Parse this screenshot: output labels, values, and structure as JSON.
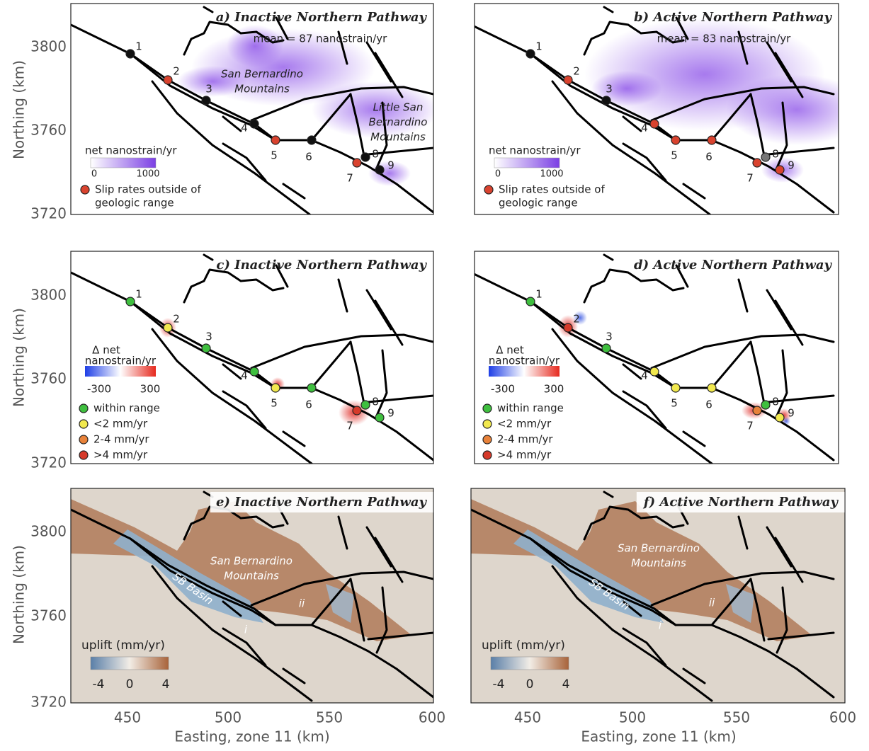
{
  "rows": [
    {
      "y_label": "Northing (km)",
      "yticks": [
        3800,
        3760,
        3720
      ]
    },
    {
      "y_label": "Northing (km)",
      "yticks": [
        3800,
        3760,
        3720
      ]
    },
    {
      "y_label": "Northing (km)",
      "yticks": [
        3800,
        3760,
        3720
      ]
    }
  ],
  "columns": [
    {
      "x_label": "Easting, zone 11 (km)",
      "xticks": [
        450,
        500,
        550,
        600
      ]
    },
    {
      "x_label": "Easting, zone 11 (km)",
      "xticks": [
        450,
        500,
        550,
        600
      ]
    }
  ],
  "panels": [
    {
      "title": "a) Inactive Northern Pathway",
      "note": "mean = 87 nanostrain/yr",
      "regions": [
        {
          "lines": [
            "San Bernardino",
            "Mountains"
          ]
        },
        {
          "lines": [
            "Little San",
            "Bernardino",
            "Mountains"
          ]
        }
      ],
      "colorbar": {
        "lines": [
          "net nanostrain/yr"
        ],
        "ticks": [
          0,
          1000
        ]
      },
      "legend": [
        {
          "lines": [
            "Slip rates outside of",
            "geologic range"
          ],
          "color": "#d9432f"
        }
      ],
      "sites": [
        {
          "label": "1",
          "color": "#111111"
        },
        {
          "label": "2",
          "color": "#d9432f"
        },
        {
          "label": "3",
          "color": "#111111"
        },
        {
          "label": "4",
          "color": "#111111"
        },
        {
          "label": "5",
          "color": "#d9432f"
        },
        {
          "label": "6",
          "color": "#111111"
        },
        {
          "label": "7",
          "color": "#d9432f"
        },
        {
          "label": "8",
          "color": "#111111"
        },
        {
          "label": "9",
          "color": "#111111"
        }
      ]
    },
    {
      "title": "b) Active Northern Pathway",
      "note": "mean = 83 nanostrain/yr",
      "colorbar": {
        "lines": [
          "net nanostrain/yr"
        ],
        "ticks": [
          0,
          1000
        ]
      },
      "legend": [
        {
          "lines": [
            "Slip rates outside of",
            "geologic range"
          ],
          "color": "#d9432f"
        }
      ],
      "sites": [
        {
          "label": "1",
          "color": "#111111"
        },
        {
          "label": "2",
          "color": "#d9432f"
        },
        {
          "label": "3",
          "color": "#111111"
        },
        {
          "label": "4",
          "color": "#d9432f"
        },
        {
          "label": "5",
          "color": "#d9432f"
        },
        {
          "label": "6",
          "color": "#d9432f"
        },
        {
          "label": "7",
          "color": "#d9432f"
        },
        {
          "label": "8",
          "color": "#777777"
        },
        {
          "label": "9",
          "color": "#d9432f"
        }
      ]
    },
    {
      "title": "c) Inactive Northern Pathway",
      "colorbar": {
        "lines": [
          "Δ net",
          "nanostrain/yr"
        ],
        "ticks": [
          -300,
          300
        ]
      },
      "legend": [
        {
          "lines": [
            "within range"
          ],
          "color": "#3fbf3f"
        },
        {
          "lines": [
            "<2 mm/yr"
          ],
          "color": "#f2e94e"
        },
        {
          "lines": [
            "2-4 mm/yr"
          ],
          "color": "#e8823a"
        },
        {
          "lines": [
            ">4 mm/yr"
          ],
          "color": "#d63a2a"
        }
      ],
      "sites": [
        {
          "label": "1",
          "color": "#3fbf3f"
        },
        {
          "label": "2",
          "color": "#f2e94e"
        },
        {
          "label": "3",
          "color": "#3fbf3f"
        },
        {
          "label": "4",
          "color": "#3fbf3f"
        },
        {
          "label": "5",
          "color": "#f2e94e"
        },
        {
          "label": "6",
          "color": "#3fbf3f"
        },
        {
          "label": "7",
          "color": "#d63a2a"
        },
        {
          "label": "8",
          "color": "#3fbf3f"
        },
        {
          "label": "9",
          "color": "#3fbf3f"
        }
      ]
    },
    {
      "title": "d) Active Northern Pathway",
      "colorbar": {
        "lines": [
          "Δ net",
          "nanostrain/yr"
        ],
        "ticks": [
          -300,
          300
        ]
      },
      "legend": [
        {
          "lines": [
            "within range"
          ],
          "color": "#3fbf3f"
        },
        {
          "lines": [
            "<2 mm/yr"
          ],
          "color": "#f2e94e"
        },
        {
          "lines": [
            "2-4 mm/yr"
          ],
          "color": "#e8823a"
        },
        {
          "lines": [
            ">4 mm/yr"
          ],
          "color": "#d63a2a"
        }
      ],
      "sites": [
        {
          "label": "1",
          "color": "#3fbf3f"
        },
        {
          "label": "2",
          "color": "#d63a2a"
        },
        {
          "label": "3",
          "color": "#3fbf3f"
        },
        {
          "label": "4",
          "color": "#f2e94e"
        },
        {
          "label": "5",
          "color": "#f2e94e"
        },
        {
          "label": "6",
          "color": "#f2e94e"
        },
        {
          "label": "7",
          "color": "#e8823a"
        },
        {
          "label": "8",
          "color": "#3fbf3f"
        },
        {
          "label": "9",
          "color": "#f2e94e"
        }
      ]
    },
    {
      "title": "e) Inactive Northern Pathway",
      "regions": [
        {
          "lines": [
            "San Bernardino",
            "Mountains"
          ]
        },
        {
          "lines": [
            "SB Basin"
          ]
        },
        {
          "lines": [
            "i"
          ]
        },
        {
          "lines": [
            "ii"
          ]
        }
      ],
      "colorbar": {
        "lines": [
          "uplift (mm/yr)"
        ],
        "ticks": [
          -4,
          0,
          4
        ]
      }
    },
    {
      "title": "f) Active Northern Pathway",
      "regions": [
        {
          "lines": [
            "San Bernardino",
            "Mountains"
          ]
        },
        {
          "lines": [
            "SB Basin"
          ]
        },
        {
          "lines": [
            "i"
          ]
        },
        {
          "lines": [
            "ii"
          ]
        }
      ],
      "colorbar": {
        "lines": [
          "uplift (mm/yr)"
        ],
        "ticks": [
          -4,
          0,
          4
        ]
      }
    }
  ]
}
